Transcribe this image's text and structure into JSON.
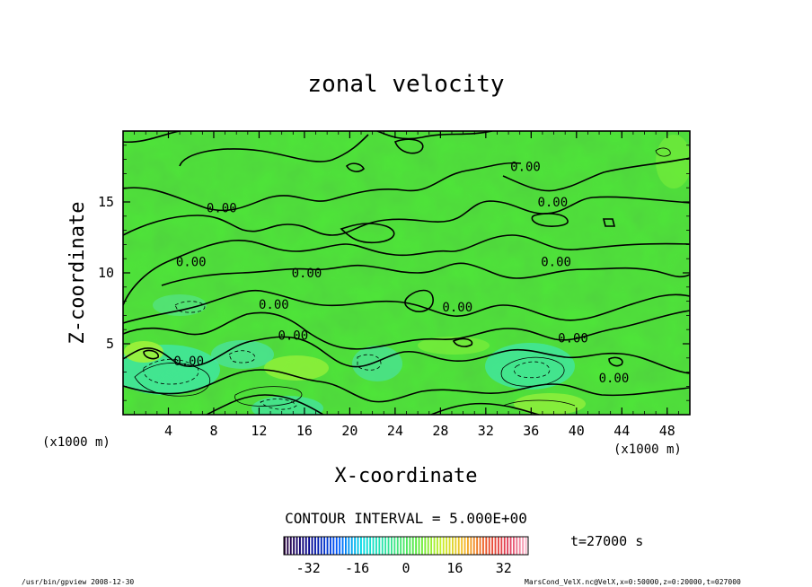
{
  "chart_data": {
    "type": "contour",
    "title": "zonal velocity",
    "xlabel": "X-coordinate",
    "ylabel": "Z-coordinate",
    "x_unit_label_left": "(x1000 m)",
    "x_unit_label_right": "(x1000 m)",
    "xlim": [
      0,
      50
    ],
    "ylim": [
      0,
      20
    ],
    "x_ticks": [
      4,
      8,
      12,
      16,
      20,
      24,
      28,
      32,
      36,
      40,
      44,
      48
    ],
    "y_ticks": [
      5,
      10,
      15
    ],
    "contour_interval_text": "CONTOUR INTERVAL = 5.000E+00",
    "time_label": "t=27000 s",
    "colorbar": {
      "ticks": [
        -32,
        -16,
        0,
        16,
        32
      ],
      "range": [
        -40,
        40
      ]
    },
    "contour_labels": [
      {
        "text": "0.00",
        "x": 8.7,
        "z": 14.6
      },
      {
        "text": "0.00",
        "x": 6.0,
        "z": 10.8
      },
      {
        "text": "0.00",
        "x": 16.2,
        "z": 10.0
      },
      {
        "text": "0.00",
        "x": 13.3,
        "z": 7.8
      },
      {
        "text": "0.00",
        "x": 15.0,
        "z": 5.6
      },
      {
        "text": "0.00",
        "x": 5.8,
        "z": 3.8
      },
      {
        "text": "0.00",
        "x": 29.5,
        "z": 7.6
      },
      {
        "text": "0.00",
        "x": 35.5,
        "z": 17.5
      },
      {
        "text": "0.00",
        "x": 37.9,
        "z": 15.0
      },
      {
        "text": "0.00",
        "x": 38.2,
        "z": 10.8
      },
      {
        "text": "0.00",
        "x": 39.7,
        "z": 5.4
      },
      {
        "text": "0.00",
        "x": 43.3,
        "z": 2.6
      }
    ],
    "background_color": "#4ee838"
  },
  "footer": {
    "left": "/usr/bin/gpview  2008-12-30",
    "right": "MarsCond_VelX.nc@VelX,x=0:50000,z=0:20000,t=027000"
  }
}
